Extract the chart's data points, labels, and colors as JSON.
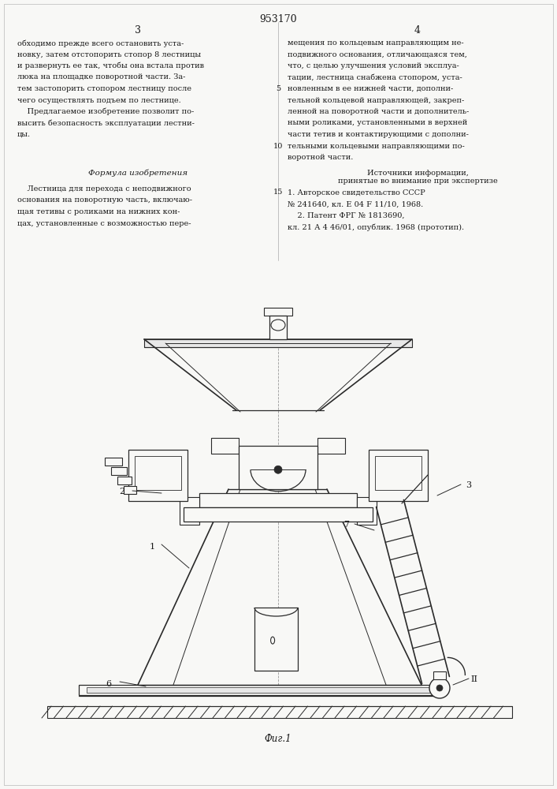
{
  "page_width": 7.07,
  "page_height": 10.0,
  "bg_color": "#f8f8f6",
  "line_color": "#2a2a2a",
  "text_color": "#1a1a1a",
  "patent_number": "953170",
  "text_left": "обходимо прежде всего остановить уста-\nновку, затем отстопорить стопор 8 лестницы\nи развернуть ее так, чтобы она встала против\nлюка на площадке поворотной части. За-\nтем застопорить стопором лестницу после\nчего осуществлять подъем по лестнице.\n    Предлагаемое изобретение позволит по-\nвысить безопасность эксплуатации лестни-\nцы.",
  "text_right": "мещения по кольцевым направляющим не-\nподвижного основания, отличающаяся тем,\nчто, с целью улучшения условий эксплуа-\nтации, лестница снабжена стопором, уста-\nновленным в ее нижней части, дополни-\nтельной кольцевой направляющей, закреп-\nленной на поворотной части и дополнитель-\nными роликами, установленными в верхней\nчасти тетив и контактирующими с дополни-\nтельными кольцевыми направляющими по-\nворотной части.",
  "formula_title": "Формула изобретения",
  "formula_text": "    Лестница для перехода с неподвижного\nоснования на поворотную часть, включаю-\nщая тетивы с роликами на нижних кон-\nцах, установленные с возможностью пере-",
  "sources_title": "Источники информации,\nпринятые во внимание при экспертизе",
  "sources_text": "1. Авторское свидетельство СССР\n№ 241640, кл. Е 04 F 11/10, 1968.\n    2. Патент ФРГ № 1813690,\nкл. 21 А 4 46/01, опублик. 1968 (прототип).",
  "fig_caption": "Фиг.1"
}
